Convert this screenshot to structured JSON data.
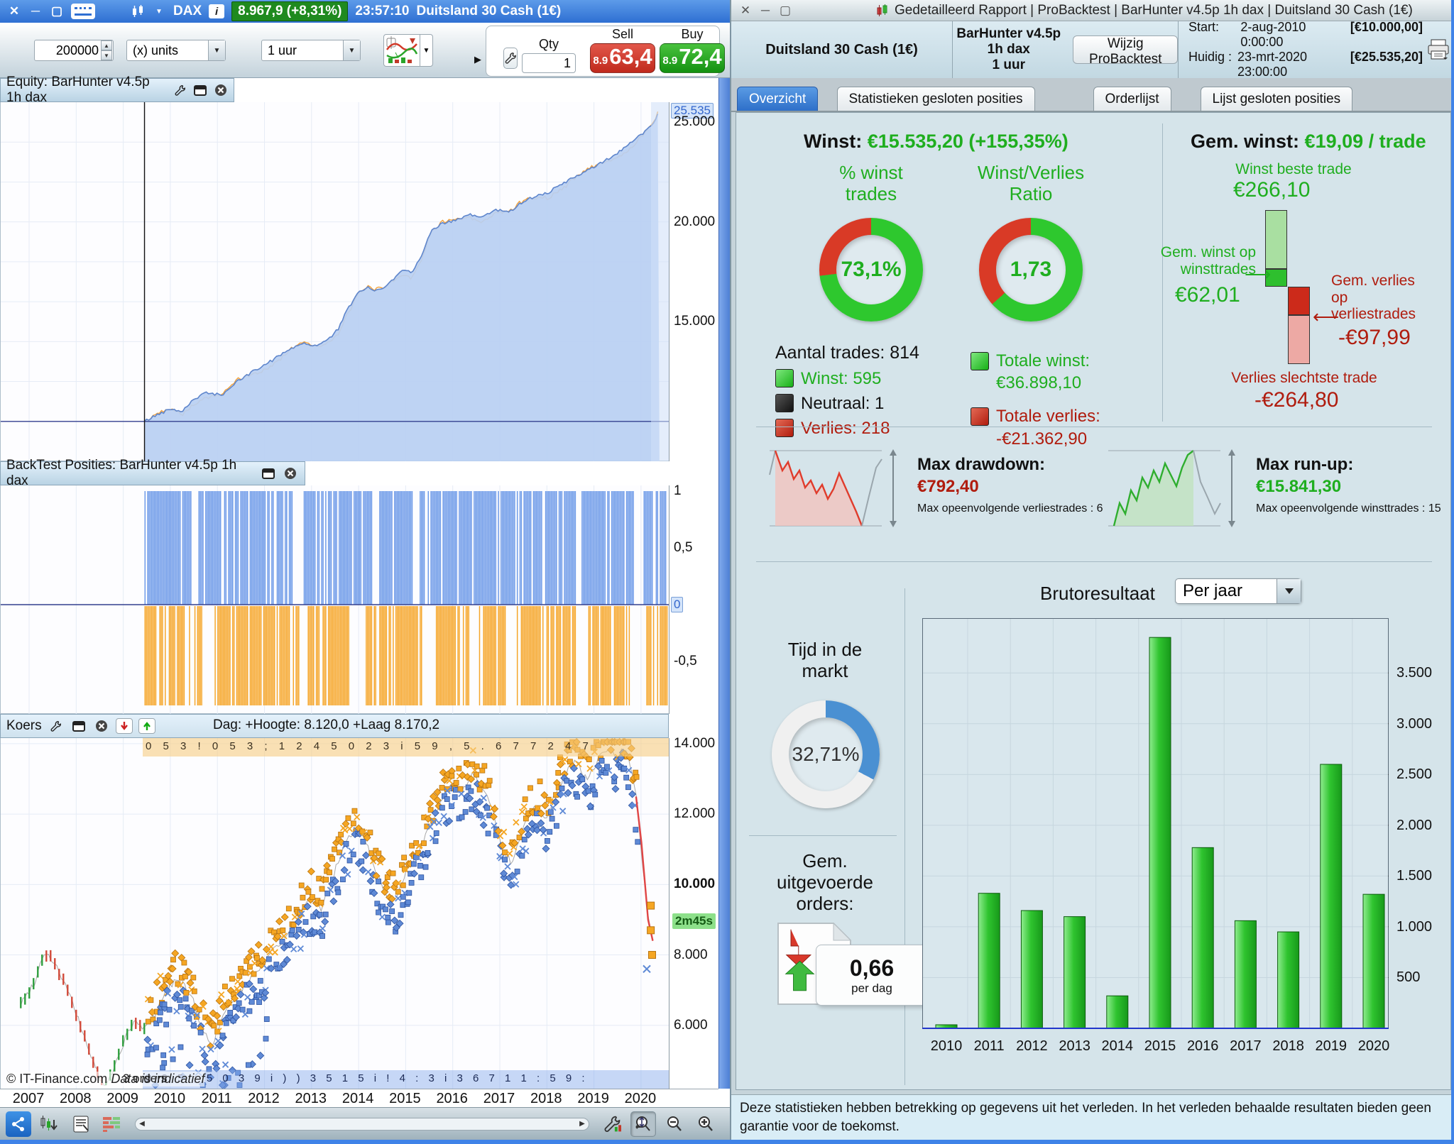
{
  "left_window": {
    "titlebar": {
      "symbol": "DAX",
      "info_icon": "i",
      "price_badge": "8.967,9 (+8,31%)",
      "time": "23:57:10",
      "instrument": "Duitsland 30 Cash (1€)"
    },
    "toolbar": {
      "quantity_value": "200000",
      "units_option": "(x) units",
      "timeframe_option": "1 uur",
      "qty_label": "Qty",
      "qty_value": "1",
      "sell_label": "Sell",
      "buy_label": "Buy",
      "sell_prefix": "8.9",
      "sell_price": "63,4",
      "buy_prefix": "8.9",
      "buy_price": "72,4"
    },
    "equity_panel": {
      "title": "Equity: BarHunter v4.5p 1h dax",
      "current_label": "25.535",
      "axis": [
        {
          "value": 25000,
          "label": "25.000"
        },
        {
          "value": 20000,
          "label": "20.000"
        },
        {
          "value": 15000,
          "label": "15.000"
        }
      ]
    },
    "positions_panel": {
      "title": "BackTest Posities: BarHunter v4.5p 1h dax",
      "axis": [
        {
          "value": 1,
          "label": "1"
        },
        {
          "value": 0.5,
          "label": "0,5"
        },
        {
          "value": -0.5,
          "label": "-0,5"
        }
      ],
      "zero_label": "0"
    },
    "price_panel": {
      "title": "Koers",
      "day_info": "Dag: +Hoogte: 8.120,0 +Laag 8.170,2",
      "orders_top_band": "0 5 3 ! 0 5 3 ; 1 2  4  5 0 2 3 i 5 9  , 5 .  6 7 7  2 4  7",
      "countdown": "2m45s",
      "axis": [
        {
          "value": 14000,
          "label": "14.000",
          "bold": false
        },
        {
          "value": 12000,
          "label": "12.000",
          "bold": false
        },
        {
          "value": 10000,
          "label": "10.000",
          "bold": true
        },
        {
          "value": 8000,
          "label": "8.000",
          "bold": false
        },
        {
          "value": 6000,
          "label": "6.000",
          "bold": false
        }
      ]
    },
    "footer": {
      "copyright": "© IT-Finance.com",
      "data_note": "Data is indicatief",
      "orders_label": "3 orders",
      "orders_band": "3  3  5 ; 5  0  3  9  i )  )  3 5 1 5  i  ! 4 : 3  i  3  6  7 1  1 : 5  9 :",
      "years": [
        "2007",
        "2008",
        "2009",
        "2010",
        "2011",
        "2012",
        "2013",
        "2014",
        "2015",
        "2016",
        "2017",
        "2018",
        "2019",
        "2020"
      ]
    }
  },
  "right_window": {
    "titlebar": {
      "title": "Gedetailleerd Rapport | ProBacktest | BarHunter v4.5p 1h dax | Duitsland 30 Cash (1€)"
    },
    "header": {
      "instrument": "Duitsland 30 Cash (1€)",
      "program": "BarHunter v4.5p 1h dax\n1 uur",
      "edit_button": "Wijzig ProBacktest",
      "start_label": "Start:",
      "start_datetime": "2-aug-2010 0:00:00",
      "start_amount": "[€10.000,00]",
      "current_label": "Huidig :",
      "current_datetime": "23-mrt-2020 23:00:00",
      "current_amount": "[€25.535,20]"
    },
    "tabs": [
      {
        "label": "Overzicht",
        "active": true
      },
      {
        "label": "Statistieken gesloten posities",
        "active": false
      },
      {
        "label": "Orderlijst",
        "active": false
      },
      {
        "label": "Lijst gesloten posities",
        "active": false
      }
    ],
    "overview": {
      "winst_label": "Winst:",
      "winst_value": "€15.535,20 (+155,35%)",
      "pct_donut_label": "% winst\ntrades",
      "pct_donut_center": "73,1%",
      "ratio_donut_label": "Winst/Verlies\nRatio",
      "ratio_donut_center": "1,73",
      "aantal_trades": "Aantal trades: 814",
      "legend_win": "Winst: 595",
      "legend_neutral": "Neutraal: 1",
      "legend_loss": "Verlies: 218",
      "totale_winst_label": "Totale winst:",
      "totale_winst_value": "€36.898,10",
      "totale_verlies_label": "Totale verlies:",
      "totale_verlies_value": "-€21.362,90",
      "gem_winst_label": "Gem. winst:",
      "gem_winst_value": "€19,09 / trade",
      "best_trade_label": "Winst beste trade",
      "best_trade_value": "€266,10",
      "avg_win_label": "Gem. winst op\nwinsttrades",
      "avg_win_value": "€62,01",
      "avg_loss_label": "Gem. verlies\nop\nverliestrades",
      "avg_loss_value": "-€97,99",
      "worst_trade_label": "Verlies slechtste trade",
      "worst_trade_value": "-€264,80",
      "drawdown_label": "Max drawdown:",
      "drawdown_value": "€792,40",
      "drawdown_sub": "Max opeenvolgende verliestrades : 6",
      "runup_label": "Max run-up:",
      "runup_value": "€15.841,30",
      "runup_sub": "Max opeenvolgende winsttrades : 15",
      "tijd_label": "Tijd in de\nmarkt",
      "tijd_center": "32,71%",
      "orders_label": "Gem.\nuitgevoerde\norders:",
      "orders_value": "0,66",
      "orders_unit": "per dag",
      "bruto_label": "Brutoresultaat",
      "bruto_dropdown": "Per jaar"
    },
    "disclaimer": "Deze statistieken hebben betrekking op gegevens uit het verleden. In het verleden behaalde resultaten bieden geen garantie voor de toekomst."
  },
  "colors": {
    "green": "#1fae1f",
    "bright_green": "#2ec82e",
    "red": "#c2271a",
    "bright_red": "#d93a26",
    "blue_accent": "#4a90d2",
    "bar_green": "#2fc42f",
    "orange": "#f6a62a",
    "bar_blue": "#6d9ae8"
  },
  "chart_data": [
    {
      "name": "equity_curve",
      "type": "area",
      "title": "Equity: BarHunter v4.5p 1h dax",
      "ylim": [
        8000,
        26000
      ],
      "yticks": [
        15000,
        20000,
        25000
      ],
      "last_value": 25535,
      "x_years": [
        2010,
        2011,
        2012,
        2013,
        2014,
        2015,
        2016,
        2017,
        2018,
        2019,
        2020
      ],
      "year_values": [
        10000,
        11300,
        12400,
        13700,
        14000,
        16600,
        17600,
        20200,
        20600,
        22000,
        25535
      ],
      "path": [
        [
          0.215,
          10000
        ],
        [
          0.235,
          10350
        ],
        [
          0.255,
          10650
        ],
        [
          0.27,
          10500
        ],
        [
          0.29,
          11150
        ],
        [
          0.31,
          11450
        ],
        [
          0.33,
          11300
        ],
        [
          0.35,
          11900
        ],
        [
          0.37,
          12350
        ],
        [
          0.39,
          12750
        ],
        [
          0.41,
          13150
        ],
        [
          0.43,
          13600
        ],
        [
          0.45,
          13900
        ],
        [
          0.47,
          13800
        ],
        [
          0.49,
          14100
        ],
        [
          0.505,
          14650
        ],
        [
          0.52,
          15700
        ],
        [
          0.535,
          16450
        ],
        [
          0.55,
          16700
        ],
        [
          0.565,
          16550
        ],
        [
          0.585,
          17050
        ],
        [
          0.6,
          17600
        ],
        [
          0.615,
          17500
        ],
        [
          0.63,
          18400
        ],
        [
          0.645,
          19600
        ],
        [
          0.66,
          19950
        ],
        [
          0.68,
          20050
        ],
        [
          0.7,
          20350
        ],
        [
          0.72,
          20250
        ],
        [
          0.74,
          20600
        ],
        [
          0.76,
          20500
        ],
        [
          0.78,
          21000
        ],
        [
          0.8,
          21300
        ],
        [
          0.82,
          21500
        ],
        [
          0.84,
          21900
        ],
        [
          0.86,
          22300
        ],
        [
          0.88,
          22600
        ],
        [
          0.9,
          23000
        ],
        [
          0.92,
          23400
        ],
        [
          0.94,
          23900
        ],
        [
          0.955,
          24300
        ],
        [
          0.968,
          24700
        ],
        [
          0.978,
          25100
        ],
        [
          0.985,
          25535
        ]
      ]
    },
    {
      "name": "backtest_positions",
      "type": "bar",
      "title": "BackTest Posities: BarHunter v4.5p 1h dax",
      "ylim": [
        -1,
        1.1
      ],
      "long_level": 1,
      "short_level": -0.89,
      "start_frac": 0.215,
      "blue_gaps": [
        [
          0.285,
          0.293
        ],
        [
          0.437,
          0.452
        ],
        [
          0.555,
          0.565
        ],
        [
          0.617,
          0.626
        ],
        [
          0.86,
          0.868
        ],
        [
          0.947,
          0.96
        ]
      ],
      "orange_gaps": [
        [
          0.3,
          0.318
        ],
        [
          0.445,
          0.458
        ],
        [
          0.52,
          0.545
        ],
        [
          0.63,
          0.65
        ],
        [
          0.7,
          0.715
        ],
        [
          0.755,
          0.77
        ],
        [
          0.86,
          0.876
        ],
        [
          0.945,
          0.965
        ]
      ]
    },
    {
      "name": "koers",
      "type": "line",
      "title": "Koers",
      "ylim": [
        4200,
        14160
      ],
      "yticks": [
        6000,
        8000,
        10000,
        12000,
        14000
      ],
      "path": [
        [
          0.03,
          6600
        ],
        [
          0.05,
          7200
        ],
        [
          0.065,
          8100
        ],
        [
          0.08,
          7800
        ],
        [
          0.1,
          7000
        ],
        [
          0.115,
          6200
        ],
        [
          0.13,
          5400
        ],
        [
          0.145,
          4650
        ],
        [
          0.155,
          4150
        ],
        [
          0.17,
          4800
        ],
        [
          0.185,
          5600
        ],
        [
          0.2,
          6100
        ],
        [
          0.215,
          5900
        ],
        [
          0.23,
          6300
        ],
        [
          0.245,
          6900
        ],
        [
          0.26,
          7300
        ],
        [
          0.275,
          7100
        ],
        [
          0.29,
          6600
        ],
        [
          0.3,
          5900
        ],
        [
          0.315,
          5450
        ],
        [
          0.33,
          6100
        ],
        [
          0.345,
          6700
        ],
        [
          0.36,
          7000
        ],
        [
          0.375,
          7400
        ],
        [
          0.39,
          7700
        ],
        [
          0.405,
          8100
        ],
        [
          0.42,
          8400
        ],
        [
          0.435,
          8700
        ],
        [
          0.45,
          9200
        ],
        [
          0.465,
          9600
        ],
        [
          0.48,
          9300
        ],
        [
          0.5,
          10400
        ],
        [
          0.515,
          11100
        ],
        [
          0.53,
          11600
        ],
        [
          0.545,
          11300
        ],
        [
          0.56,
          10400
        ],
        [
          0.575,
          9800
        ],
        [
          0.59,
          9500
        ],
        [
          0.605,
          10300
        ],
        [
          0.62,
          10800
        ],
        [
          0.64,
          11600
        ],
        [
          0.66,
          12400
        ],
        [
          0.675,
          12900
        ],
        [
          0.69,
          12600
        ],
        [
          0.705,
          13100
        ],
        [
          0.72,
          12700
        ],
        [
          0.735,
          12200
        ],
        [
          0.75,
          11000
        ],
        [
          0.765,
          10600
        ],
        [
          0.78,
          11600
        ],
        [
          0.8,
          12300
        ],
        [
          0.815,
          11900
        ],
        [
          0.83,
          12600
        ],
        [
          0.845,
          13200
        ],
        [
          0.86,
          13500
        ],
        [
          0.875,
          13000
        ],
        [
          0.89,
          13400
        ],
        [
          0.905,
          13900
        ],
        [
          0.92,
          13600
        ],
        [
          0.935,
          13900
        ],
        [
          0.95,
          12500
        ],
        [
          0.96,
          10500
        ],
        [
          0.968,
          9000
        ],
        [
          0.975,
          8400
        ]
      ]
    },
    {
      "name": "brutoresultaat_per_jaar",
      "type": "bar",
      "title": "Brutoresultaat",
      "period": "Per jaar",
      "categories": [
        "2010",
        "2011",
        "2012",
        "2013",
        "2014",
        "2015",
        "2016",
        "2017",
        "2018",
        "2019",
        "2020"
      ],
      "values": [
        35,
        1330,
        1160,
        1100,
        320,
        3850,
        1780,
        1060,
        950,
        2600,
        1320
      ],
      "yticks": [
        500,
        1000,
        1500,
        2000,
        2500,
        3000,
        3500
      ],
      "ylim": [
        0,
        4040
      ],
      "bar_color": "#2fc42f"
    },
    {
      "name": "pct_winst_trades",
      "type": "pie",
      "center_label": "73,1%",
      "slices": [
        {
          "label": "Winst",
          "value": 73.1,
          "color": "#2ec82e"
        },
        {
          "label": "Verlies",
          "value": 26.9,
          "color": "#d93a26"
        }
      ]
    },
    {
      "name": "winst_verlies_ratio",
      "type": "pie",
      "center_label": "1,73",
      "slices": [
        {
          "label": "Totale winst",
          "value": 63.4,
          "color": "#2ec82e"
        },
        {
          "label": "Totale verlies",
          "value": 36.6,
          "color": "#d93a26"
        }
      ]
    },
    {
      "name": "tijd_in_de_markt",
      "type": "pie",
      "center_label": "32,71%",
      "slices": [
        {
          "label": "In markt",
          "value": 32.71,
          "color": "#4a90d2"
        },
        {
          "label": "Uit markt",
          "value": 67.29,
          "color": "#f0f0f0"
        }
      ]
    },
    {
      "name": "gem_winst_per_trade",
      "type": "bar",
      "categories": [
        "Winst beste trade",
        "Gem. winst op winsttrades",
        "Gem. verlies op verliestrades",
        "Verlies slechtste trade"
      ],
      "values": [
        266.1,
        62.01,
        -97.99,
        -264.8
      ]
    }
  ]
}
